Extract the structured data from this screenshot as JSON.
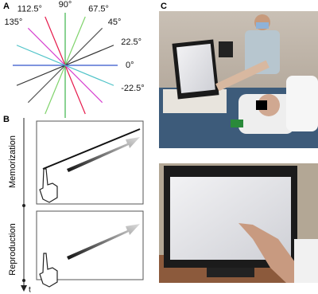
{
  "panels": {
    "a": {
      "label": "A",
      "rays": [
        {
          "angle": 90,
          "label": "90°",
          "color": "#3cb44b"
        },
        {
          "angle": 112.5,
          "label": "112.5°",
          "color": "#e6194b"
        },
        {
          "angle": 67.5,
          "label": "67.5°",
          "color": "#7fd36b"
        },
        {
          "angle": 135,
          "label": "135°",
          "color": "#d63fcf"
        },
        {
          "angle": 45,
          "label": "45°",
          "color": "#555555"
        },
        {
          "angle": 22.5,
          "label": "22.5°",
          "color": "#333333"
        },
        {
          "angle": 0,
          "label": "0°",
          "color": "#3355cc"
        },
        {
          "angle": -22.5,
          "label": "-22.5°",
          "color": "#4fc3c8"
        }
      ]
    },
    "b": {
      "label": "B",
      "phase1": "Memorization",
      "phase2": "Reproduction",
      "time_axis": "t"
    },
    "c": {
      "label": "C"
    }
  }
}
